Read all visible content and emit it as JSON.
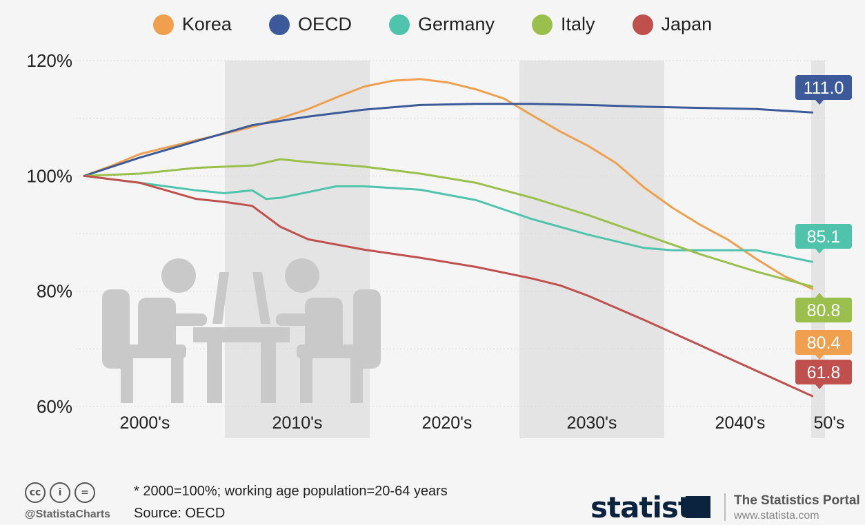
{
  "chart_data": {
    "type": "line",
    "x_labels": [
      "2000's",
      "2010's",
      "2020's",
      "2030's",
      "2040's",
      "50's"
    ],
    "ylim": [
      60,
      120
    ],
    "y_ticks": [
      "60%",
      "80%",
      "100%",
      "120%"
    ],
    "series": [
      {
        "name": "Korea",
        "color": "#f09f4e",
        "end_label": "80.4",
        "values": [
          [
            0,
            100
          ],
          [
            1,
            101.8
          ],
          [
            2,
            103.8
          ],
          [
            3,
            105
          ],
          [
            4,
            106.2
          ],
          [
            5,
            107.3
          ],
          [
            6,
            108.5
          ],
          [
            7,
            110
          ],
          [
            8,
            111.6
          ],
          [
            9,
            113.6
          ],
          [
            10,
            115.5
          ],
          [
            11,
            116.5
          ],
          [
            12,
            116.8
          ],
          [
            13,
            116.2
          ],
          [
            14,
            115
          ],
          [
            15,
            113.4
          ],
          [
            16,
            110.5
          ],
          [
            17,
            107.7
          ],
          [
            18,
            105.2
          ],
          [
            19,
            102.2
          ],
          [
            20,
            98
          ],
          [
            21,
            94.5
          ],
          [
            22,
            91.5
          ],
          [
            23,
            88.9
          ],
          [
            24,
            85.6
          ],
          [
            25,
            82.6
          ],
          [
            26,
            80.4
          ]
        ]
      },
      {
        "name": "OECD",
        "color": "#3c5a99",
        "end_label": "111.0",
        "values": [
          [
            0,
            100
          ],
          [
            2,
            103.2
          ],
          [
            4,
            106
          ],
          [
            6,
            108.8
          ],
          [
            8,
            110.3
          ],
          [
            10,
            111.5
          ],
          [
            12,
            112.3
          ],
          [
            14,
            112.5
          ],
          [
            16,
            112.5
          ],
          [
            18,
            112.3
          ],
          [
            20,
            112
          ],
          [
            22,
            111.8
          ],
          [
            24,
            111.6
          ],
          [
            26,
            111.0
          ]
        ]
      },
      {
        "name": "Germany",
        "color": "#4fc3ab",
        "end_label": "85.1",
        "values": [
          [
            0,
            100
          ],
          [
            2,
            98.8
          ],
          [
            4,
            97.5
          ],
          [
            5,
            97
          ],
          [
            6,
            97.5
          ],
          [
            6.5,
            96
          ],
          [
            7,
            96.2
          ],
          [
            8,
            97.2
          ],
          [
            9,
            98.2
          ],
          [
            10,
            98.2
          ],
          [
            12,
            97.6
          ],
          [
            14,
            95.8
          ],
          [
            16,
            92.5
          ],
          [
            18,
            89.8
          ],
          [
            20,
            87.5
          ],
          [
            21,
            87.1
          ],
          [
            22,
            87.1
          ],
          [
            24,
            87.1
          ],
          [
            26,
            85.1
          ]
        ]
      },
      {
        "name": "Italy",
        "color": "#9bbf4c",
        "end_label": "80.8",
        "values": [
          [
            0,
            100
          ],
          [
            2,
            100.4
          ],
          [
            4,
            101.4
          ],
          [
            6,
            101.8
          ],
          [
            7,
            102.9
          ],
          [
            8,
            102.4
          ],
          [
            10,
            101.6
          ],
          [
            12,
            100.4
          ],
          [
            14,
            98.8
          ],
          [
            16,
            96.2
          ],
          [
            18,
            93.2
          ],
          [
            20,
            89.8
          ],
          [
            22,
            86.4
          ],
          [
            24,
            83.4
          ],
          [
            26,
            80.8
          ]
        ]
      },
      {
        "name": "Japan",
        "color": "#c0504d",
        "end_label": "61.8",
        "values": [
          [
            0,
            100
          ],
          [
            2,
            98.8
          ],
          [
            4,
            96
          ],
          [
            5,
            95.5
          ],
          [
            6,
            94.8
          ],
          [
            7,
            91.2
          ],
          [
            8,
            89
          ],
          [
            10,
            87.2
          ],
          [
            12,
            85.8
          ],
          [
            14,
            84.2
          ],
          [
            16,
            82.2
          ],
          [
            17,
            81
          ],
          [
            18,
            79.2
          ],
          [
            20,
            75
          ],
          [
            22,
            70.6
          ],
          [
            24,
            66.2
          ],
          [
            26,
            61.8
          ]
        ]
      }
    ]
  },
  "footer": {
    "note": "* 2000=100%; working age population=20-64 years",
    "source": "Source: OECD",
    "handle": "@StatistaCharts",
    "brand": "statista",
    "portal": "The Statistics Portal",
    "portal_url": "www.statista.com",
    "cc_icons": [
      "cc",
      "i",
      "="
    ]
  }
}
